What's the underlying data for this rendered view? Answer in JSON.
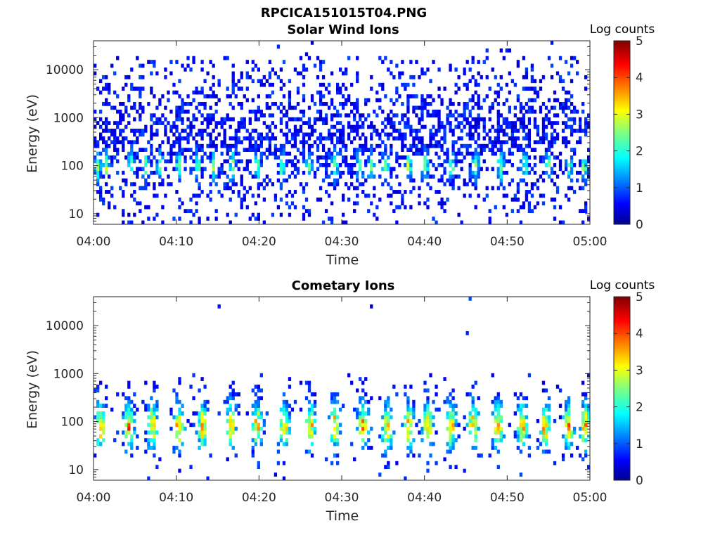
{
  "figure": {
    "title": "RPCICA151015T04.PNG"
  },
  "colorbar": {
    "label": "Log counts",
    "ticks": [
      "0",
      "1",
      "2",
      "3",
      "4",
      "5"
    ],
    "range": [
      0,
      5
    ],
    "colormap": "jet"
  },
  "chart_data": [
    {
      "type": "heatmap",
      "title": "Solar Wind Ions",
      "xlabel": "Time",
      "ylabel": "Energy (eV)",
      "x_ticks": [
        "04:00",
        "04:10",
        "04:20",
        "04:30",
        "04:40",
        "04:50",
        "05:00"
      ],
      "xlim": [
        "04:00",
        "05:00"
      ],
      "y_ticks": [
        "10",
        "100",
        "1000",
        "10000"
      ],
      "ylim": [
        6,
        40000
      ],
      "y_scale": "log",
      "color_range": [
        0,
        5
      ],
      "bursts_minutes": [
        0.5,
        1.5,
        4.5,
        6.3,
        8.0,
        10.3,
        12.6,
        14.6,
        16.8,
        19.8,
        22.8,
        26.0,
        29.2,
        32.2,
        33.6,
        35.3,
        38.1,
        40.1,
        43.3,
        46.2,
        49.2,
        52.1,
        55.0,
        57.5,
        59.3
      ],
      "peak_energy_eV": 100,
      "peak_log_counts": 2.3
    },
    {
      "type": "heatmap",
      "title": "Cometary Ions",
      "xlabel": "Time",
      "ylabel": "Energy (eV)",
      "x_ticks": [
        "04:00",
        "04:10",
        "04:20",
        "04:30",
        "04:40",
        "04:50",
        "05:00"
      ],
      "xlim": [
        "04:00",
        "05:00"
      ],
      "y_ticks": [
        "10",
        "100",
        "1000",
        "10000"
      ],
      "ylim": [
        6,
        40000
      ],
      "y_scale": "log",
      "color_range": [
        0,
        5
      ],
      "bursts_minutes": [
        0.8,
        4.3,
        7.1,
        10.3,
        13.2,
        16.6,
        19.8,
        23.1,
        26.2,
        29.2,
        32.6,
        35.5,
        38.1,
        40.4,
        43.2,
        45.9,
        48.9,
        51.8,
        54.6,
        57.4,
        59.4
      ],
      "peak_energy_eV": 80,
      "peak_log_counts": 3.5
    }
  ]
}
